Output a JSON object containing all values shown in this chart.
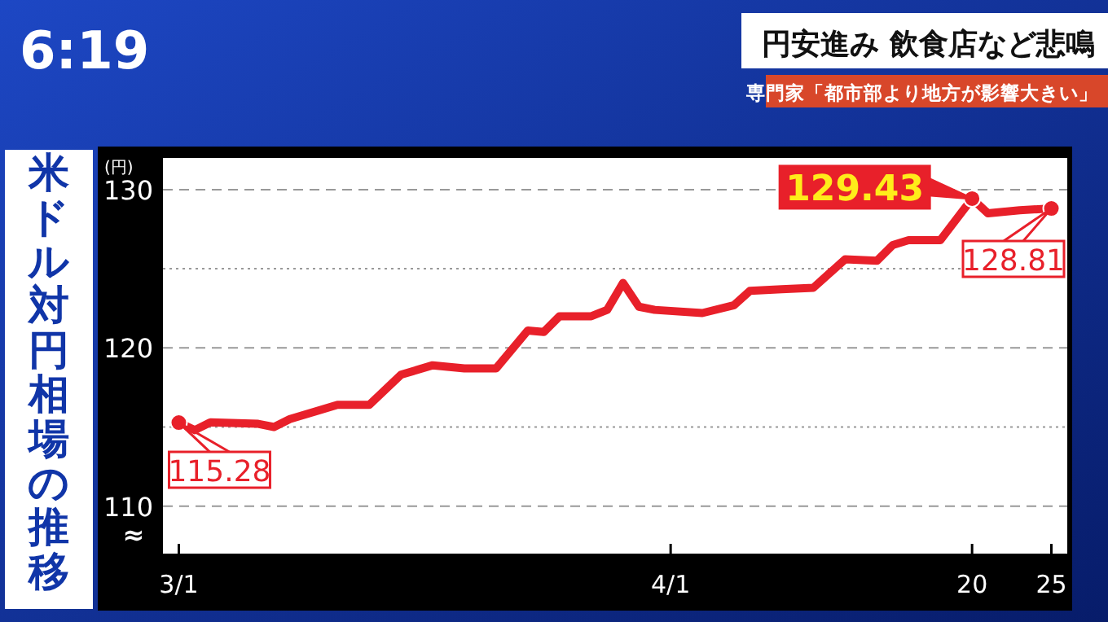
{
  "chart_data": {
    "type": "line",
    "title": "米ドル対円相場の推移",
    "ylabel": "(円)",
    "annotations": [
      "6:19",
      "円安進み 飲食店など悲鳴",
      "専門家「都市部より地方が影響大きい」",
      "≈"
    ],
    "x": [
      "--03-01",
      "--03-02",
      "--03-03",
      "--03-06",
      "--03-07",
      "--03-08",
      "--03-11",
      "--03-13",
      "--03-15",
      "--03-17",
      "--03-19",
      "--03-21",
      "--03-23",
      "--03-24",
      "--03-25",
      "--03-27",
      "--03-28",
      "--03-29",
      "--03-30",
      "--03-31",
      "--04-03",
      "--04-05",
      "--04-06",
      "--04-08",
      "--04-10",
      "--04-12",
      "--04-14",
      "--04-15",
      "--04-16",
      "--04-18",
      "--04-20",
      "--04-21",
      "--04-23",
      "--04-25"
    ],
    "series": [
      {
        "color": "#e8202a",
        "values": [
          115.28,
          114.8,
          115.3,
          115.2,
          115.0,
          115.5,
          116.4,
          116.4,
          118.3,
          118.9,
          118.7,
          118.7,
          121.1,
          121.0,
          122.0,
          122.0,
          122.4,
          124.1,
          122.6,
          122.4,
          122.2,
          122.7,
          123.6,
          123.7,
          123.8,
          125.6,
          125.5,
          126.5,
          126.8,
          126.8,
          129.43,
          128.5,
          128.7,
          128.81
        ],
        "value_labels": [
          "115.28",
          null,
          null,
          null,
          null,
          null,
          null,
          null,
          null,
          null,
          null,
          null,
          null,
          null,
          null,
          null,
          null,
          null,
          null,
          null,
          null,
          null,
          null,
          null,
          null,
          null,
          null,
          null,
          null,
          null,
          "129.43",
          null,
          null,
          "128.81"
        ]
      }
    ],
    "xlim": [
      "--02-28",
      "--04-26"
    ],
    "xticks": [
      {
        "value": "--03-01",
        "label": "3/1"
      },
      {
        "value": "--04-01",
        "label": "4/1"
      },
      {
        "value": "--04-20",
        "label": "20"
      },
      {
        "value": "--04-25",
        "label": "25"
      }
    ],
    "ylim": [
      107,
      132
    ],
    "yticks": [
      110,
      {
        "value": 115,
        "label": null
      },
      120,
      {
        "value": 125,
        "label": null
      },
      130
    ],
    "grid": "y",
    "line_style": "solid",
    "marker": "none"
  }
}
